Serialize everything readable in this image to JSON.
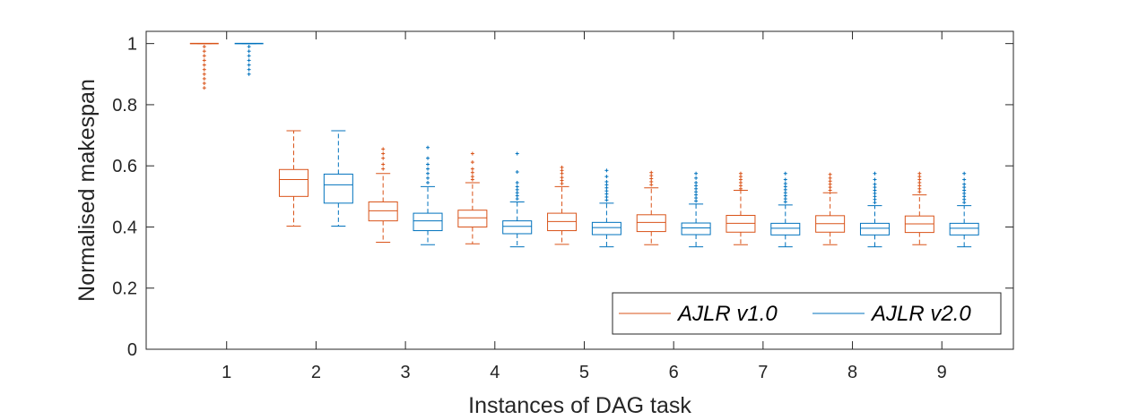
{
  "chart_data": {
    "type": "boxplot",
    "xlabel": "Instances of DAG task",
    "ylabel": "Normalised makespan",
    "xlim": [
      0.1,
      9.8
    ],
    "ylim": [
      0,
      1.04
    ],
    "yticks": [
      0,
      0.2,
      0.4,
      0.6,
      0.8,
      1
    ],
    "ytick_labels": [
      "0",
      "0.2",
      "0.4",
      "0.6",
      "0.8",
      "1"
    ],
    "categories": [
      "1",
      "2",
      "3",
      "4",
      "5",
      "6",
      "7",
      "8",
      "9"
    ],
    "legend_position": "bottom-right",
    "grid": false,
    "series": [
      {
        "name": "AJLR v1.0",
        "color": "#D95319",
        "offset": -0.25,
        "boxes": [
          {
            "whislo": 1.0,
            "q1": 1.0,
            "med": 1.0,
            "q3": 1.0,
            "whishi": 1.0,
            "outliers": [
              0.99,
              0.975,
              0.96,
              0.945,
              0.93,
              0.915,
              0.9,
              0.885,
              0.87,
              0.855
            ]
          },
          {
            "whislo": 0.403,
            "q1": 0.5,
            "med": 0.555,
            "q3": 0.588,
            "whishi": 0.715,
            "outliers": []
          },
          {
            "whislo": 0.35,
            "q1": 0.42,
            "med": 0.453,
            "q3": 0.482,
            "whishi": 0.575,
            "outliers": [
              0.59,
              0.605,
              0.625,
              0.64,
              0.655
            ]
          },
          {
            "whislo": 0.345,
            "q1": 0.4,
            "med": 0.43,
            "q3": 0.455,
            "whishi": 0.545,
            "outliers": [
              0.555,
              0.565,
              0.578,
              0.59,
              0.612,
              0.64
            ]
          },
          {
            "whislo": 0.343,
            "q1": 0.388,
            "med": 0.418,
            "q3": 0.445,
            "whishi": 0.532,
            "outliers": [
              0.542,
              0.552,
              0.562,
              0.575,
              0.585,
              0.595
            ]
          },
          {
            "whislo": 0.342,
            "q1": 0.385,
            "med": 0.415,
            "q3": 0.44,
            "whishi": 0.528,
            "outliers": [
              0.538,
              0.548,
              0.558,
              0.568,
              0.578
            ]
          },
          {
            "whislo": 0.342,
            "q1": 0.383,
            "med": 0.412,
            "q3": 0.438,
            "whishi": 0.52,
            "outliers": [
              0.525,
              0.535,
              0.545,
              0.555,
              0.565,
              0.575
            ]
          },
          {
            "whislo": 0.342,
            "q1": 0.383,
            "med": 0.411,
            "q3": 0.437,
            "whishi": 0.512,
            "outliers": [
              0.52,
              0.53,
              0.54,
              0.55,
              0.56,
              0.572
            ]
          },
          {
            "whislo": 0.342,
            "q1": 0.382,
            "med": 0.41,
            "q3": 0.436,
            "whishi": 0.505,
            "outliers": [
              0.515,
              0.525,
              0.535,
              0.545,
              0.555,
              0.565,
              0.575
            ]
          }
        ]
      },
      {
        "name": "AJLR v2.0",
        "color": "#0072BD",
        "offset": 0.25,
        "boxes": [
          {
            "whislo": 1.0,
            "q1": 1.0,
            "med": 1.0,
            "q3": 1.0,
            "whishi": 1.0,
            "outliers": [
              0.99,
              0.975,
              0.96,
              0.945,
              0.93,
              0.915,
              0.9
            ]
          },
          {
            "whislo": 0.403,
            "q1": 0.478,
            "med": 0.538,
            "q3": 0.573,
            "whishi": 0.715,
            "outliers": []
          },
          {
            "whislo": 0.342,
            "q1": 0.388,
            "med": 0.42,
            "q3": 0.445,
            "whishi": 0.532,
            "outliers": [
              0.545,
              0.56,
              0.575,
              0.59,
              0.605,
              0.625,
              0.66
            ]
          },
          {
            "whislo": 0.335,
            "q1": 0.378,
            "med": 0.402,
            "q3": 0.42,
            "whishi": 0.482,
            "outliers": [
              0.492,
              0.502,
              0.512,
              0.522,
              0.532,
              0.545,
              0.58,
              0.64
            ]
          },
          {
            "whislo": 0.335,
            "q1": 0.375,
            "med": 0.398,
            "q3": 0.415,
            "whishi": 0.478,
            "outliers": [
              0.488,
              0.498,
              0.508,
              0.518,
              0.528,
              0.538,
              0.548,
              0.565,
              0.585
            ]
          },
          {
            "whislo": 0.335,
            "q1": 0.375,
            "med": 0.397,
            "q3": 0.413,
            "whishi": 0.475,
            "outliers": [
              0.485,
              0.495,
              0.505,
              0.515,
              0.525,
              0.535,
              0.545,
              0.56,
              0.575
            ]
          },
          {
            "whislo": 0.335,
            "q1": 0.374,
            "med": 0.396,
            "q3": 0.412,
            "whishi": 0.472,
            "outliers": [
              0.482,
              0.492,
              0.502,
              0.512,
              0.522,
              0.532,
              0.542,
              0.555,
              0.575
            ]
          },
          {
            "whislo": 0.335,
            "q1": 0.374,
            "med": 0.396,
            "q3": 0.412,
            "whishi": 0.47,
            "outliers": [
              0.48,
              0.49,
              0.5,
              0.51,
              0.52,
              0.53,
              0.54,
              0.555,
              0.575
            ]
          },
          {
            "whislo": 0.335,
            "q1": 0.374,
            "med": 0.396,
            "q3": 0.412,
            "whishi": 0.47,
            "outliers": [
              0.48,
              0.49,
              0.5,
              0.51,
              0.52,
              0.53,
              0.54,
              0.555,
              0.575
            ]
          }
        ]
      }
    ]
  }
}
